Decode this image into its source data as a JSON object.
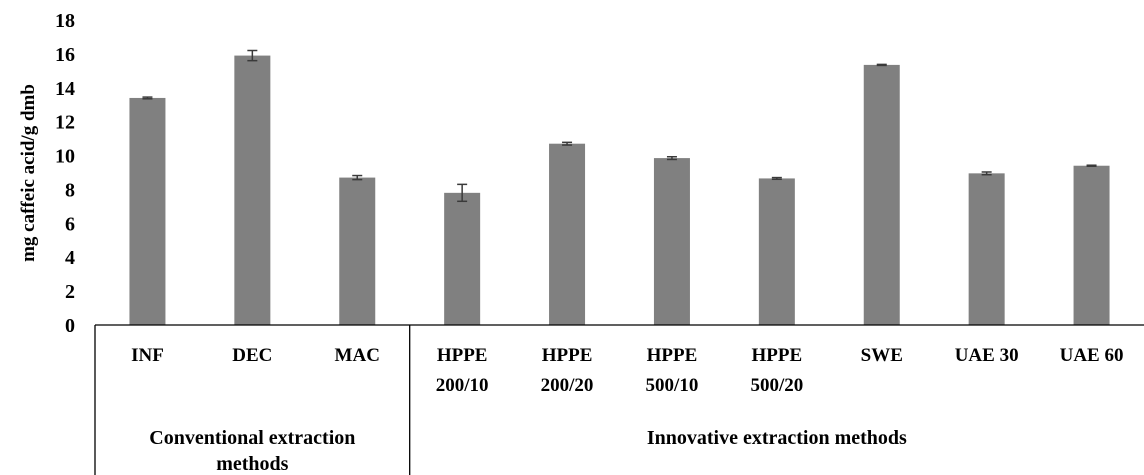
{
  "chart_data": {
    "type": "bar",
    "ylabel": "mg caffeic acid/g dmb",
    "ylim": [
      0,
      18
    ],
    "yticks": [
      0,
      2,
      4,
      6,
      8,
      10,
      12,
      14,
      16,
      18
    ],
    "grid": false,
    "bar_color": "#808080",
    "categories": [
      {
        "lines": [
          "INF"
        ],
        "value": 13.4,
        "error": 0.05
      },
      {
        "lines": [
          "DEC"
        ],
        "value": 15.9,
        "error": 0.3
      },
      {
        "lines": [
          "MAC"
        ],
        "value": 8.7,
        "error": 0.12
      },
      {
        "lines": [
          "HPPE",
          "200/10"
        ],
        "value": 7.8,
        "error": 0.5
      },
      {
        "lines": [
          "HPPE",
          "200/20"
        ],
        "value": 10.7,
        "error": 0.08
      },
      {
        "lines": [
          "HPPE",
          "500/10"
        ],
        "value": 9.85,
        "error": 0.08
      },
      {
        "lines": [
          "HPPE",
          "500/20"
        ],
        "value": 8.65,
        "error": 0.05
      },
      {
        "lines": [
          "SWE"
        ],
        "value": 15.35,
        "error": 0.03
      },
      {
        "lines": [
          "UAE 30"
        ],
        "value": 8.95,
        "error": 0.08
      },
      {
        "lines": [
          "UAE 60"
        ],
        "value": 9.4,
        "error": 0.03
      }
    ],
    "groups": [
      {
        "lines": [
          "Conventional extraction",
          "methods"
        ],
        "count": 3
      },
      {
        "lines": [
          "Innovative  extraction methods"
        ],
        "count": 7
      }
    ]
  }
}
